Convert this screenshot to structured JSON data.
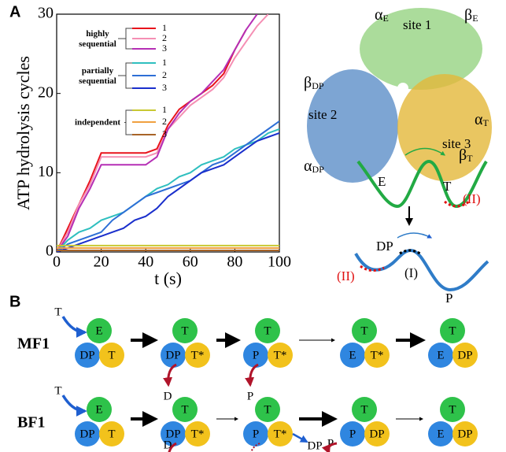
{
  "panel_labels": [
    "A",
    "B"
  ],
  "chart_data": {
    "type": "line",
    "ylabel": "ATP hydrolysis cycles",
    "xlabel": "t (s)",
    "xlim": [
      0,
      100
    ],
    "ylim": [
      0,
      30
    ],
    "xticks": [
      0,
      20,
      40,
      60,
      80,
      100
    ],
    "yticks": [
      0,
      10,
      20,
      30
    ],
    "legend_groups": [
      [
        "highly",
        "sequential"
      ],
      [
        "partially",
        "sequential"
      ],
      [
        "independent"
      ]
    ],
    "x": [
      0,
      5,
      10,
      15,
      20,
      25,
      30,
      35,
      40,
      45,
      50,
      55,
      60,
      65,
      70,
      75,
      80,
      85,
      90,
      95,
      100
    ],
    "series": [
      {
        "name": "1",
        "color": "#e8141c",
        "values": [
          0,
          3,
          6,
          9,
          12.5,
          12.5,
          12.5,
          12.5,
          12.5,
          13,
          16,
          18,
          19,
          20,
          21,
          22.5,
          25.5,
          28,
          null,
          null,
          null
        ]
      },
      {
        "name": "2",
        "color": "#f58fb4",
        "values": [
          0,
          2.5,
          6,
          8.5,
          12,
          12,
          12,
          12,
          12,
          12.5,
          15.5,
          17,
          18.5,
          19.5,
          20.5,
          22,
          24.5,
          26.5,
          28.5,
          30,
          null
        ]
      },
      {
        "name": "3",
        "color": "#b52fb5",
        "values": [
          0,
          2,
          5.5,
          8,
          11,
          11,
          11,
          11,
          11,
          12,
          15.5,
          17.5,
          19,
          20,
          21.5,
          23,
          25.5,
          28,
          30,
          null,
          null
        ]
      },
      {
        "name": "1",
        "color": "#2fbfbf",
        "values": [
          0,
          1.5,
          2.5,
          3,
          4,
          4.5,
          5,
          6,
          7,
          8,
          8.5,
          9.5,
          10,
          11,
          11.5,
          12,
          13,
          13.5,
          14,
          15,
          15.5
        ]
      },
      {
        "name": "2",
        "color": "#2e6fd6",
        "values": [
          0,
          1,
          1.5,
          2,
          2.5,
          4,
          5,
          6,
          7,
          7.5,
          8,
          8.5,
          9,
          10,
          11,
          11.5,
          12.5,
          13.5,
          14.5,
          15.5,
          16.5
        ]
      },
      {
        "name": "3",
        "color": "#1a2fcc",
        "values": [
          0,
          0.5,
          1,
          1.5,
          2,
          2.5,
          3,
          4,
          4.5,
          5.5,
          7,
          8,
          9,
          10,
          10.5,
          11,
          12,
          13,
          14,
          14.5,
          15
        ]
      },
      {
        "name": "1",
        "color": "#c8c832",
        "values": [
          0.8,
          0.8,
          0.8,
          0.8,
          0.8,
          0.8,
          0.8,
          0.8,
          0.8,
          0.8,
          0.8,
          0.8,
          0.8,
          0.8,
          0.8,
          0.8,
          0.8,
          0.8,
          0.8,
          0.8,
          0.8
        ]
      },
      {
        "name": "2",
        "color": "#f0a040",
        "values": [
          0.5,
          0.5,
          0.5,
          0.5,
          0.5,
          0.5,
          0.5,
          0.5,
          0.5,
          0.5,
          0.5,
          0.5,
          0.5,
          0.5,
          0.5,
          0.5,
          0.5,
          0.5,
          0.5,
          0.5,
          0.5
        ]
      },
      {
        "name": "3",
        "color": "#a86428",
        "values": [
          0.2,
          0.2,
          0.2,
          0.2,
          0.2,
          0.2,
          0.2,
          0.2,
          0.2,
          0.2,
          0.2,
          0.2,
          0.2,
          0.2,
          0.2,
          0.2,
          0.2,
          0.2,
          0.2,
          0.2,
          0.2
        ]
      }
    ]
  },
  "structure": {
    "labels": [
      {
        "symbol": "α",
        "sub": "E"
      },
      {
        "symbol": "β",
        "sub": "E"
      },
      {
        "symbol": "β",
        "sub": "DP"
      },
      {
        "symbol": "α",
        "sub": "T"
      },
      {
        "symbol": "α",
        "sub": "DP"
      },
      {
        "symbol": "β",
        "sub": "T"
      }
    ],
    "sites": [
      "site 1",
      "site 2",
      "site 3"
    ]
  },
  "energy": {
    "top": [
      "E",
      "T",
      "(II)"
    ],
    "bottom": [
      "DP",
      "(I)",
      "(II)",
      "P"
    ]
  },
  "scheme": {
    "rows": [
      {
        "label": "MF1",
        "states": [
          [
            "E",
            "DP",
            "T"
          ],
          [
            "T",
            "DP",
            "T*"
          ],
          [
            "T",
            "P",
            "T*"
          ],
          [
            "T",
            "E",
            "T*"
          ],
          [
            "T",
            "E",
            "DP"
          ]
        ],
        "notes": [
          "T",
          "D",
          "P"
        ]
      },
      {
        "label": "BF1",
        "states": [
          [
            "E",
            "DP",
            "T"
          ],
          [
            "T",
            "DP",
            "T*"
          ],
          [
            "T",
            "P",
            "T*"
          ],
          [
            "T",
            "P",
            "DP"
          ],
          [
            "T",
            "E",
            "DP"
          ]
        ],
        "notes": [
          "T",
          "D",
          "DP",
          "P"
        ]
      }
    ]
  }
}
